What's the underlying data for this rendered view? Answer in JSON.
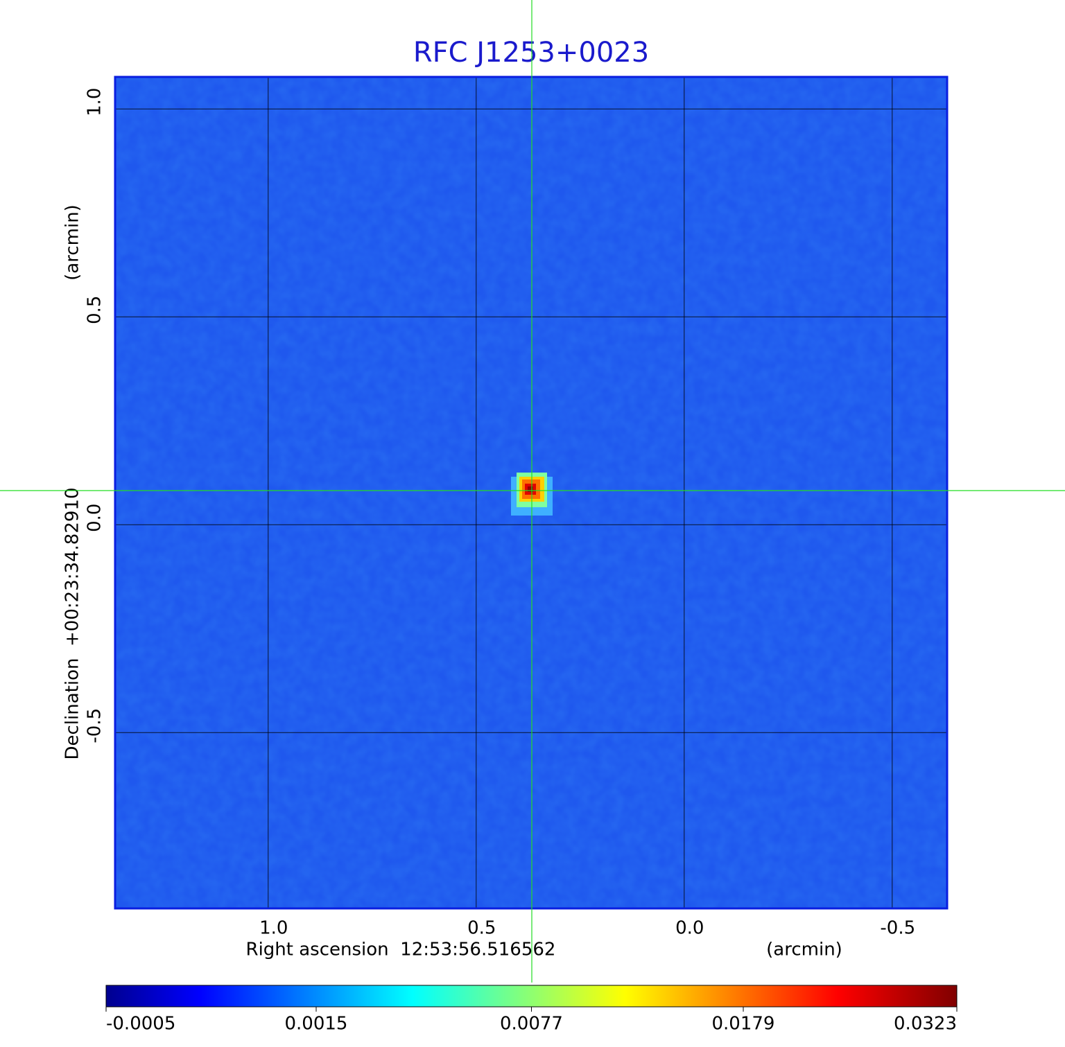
{
  "chart_data": {
    "type": "image",
    "title": "RFC J1253+0023",
    "x_label": "Right ascension  12:53:56.516562",
    "x_unit_label": "(arcmin)",
    "y_label": "Declination  +00:23:34.82910",
    "y_unit_label": "(arcmin)",
    "xlim": [
      1.368,
      -0.632
    ],
    "ylim": [
      -0.923,
      1.077
    ],
    "xticks": [
      {
        "value": 1,
        "label": "1.0"
      },
      {
        "value": 0.5,
        "label": "0.5"
      },
      {
        "value": 0,
        "label": "0.0"
      },
      -0.5
    ],
    "yticks": [
      {
        "value": 1,
        "label": "1.0"
      },
      {
        "value": 0.5,
        "label": "0.5"
      },
      {
        "value": 0,
        "label": "0.0"
      },
      -0.5
    ],
    "grid": true,
    "colorbar": {
      "lim": [
        -0.0005,
        0.0323
      ],
      "ticks": [
        -0.0005,
        0.0015,
        0.0077,
        0.0179,
        0.0323
      ],
      "scale": "sqrt"
    }
  }
}
